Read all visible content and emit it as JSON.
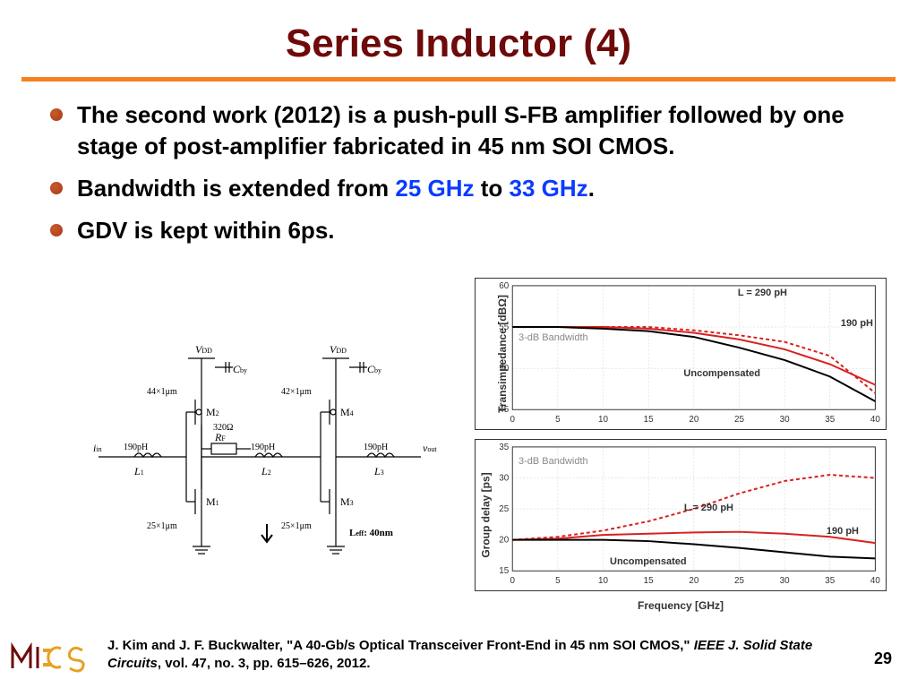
{
  "title": "Series Inductor (4)",
  "title_color": "#6e0a0a",
  "rule_color": "#f58220",
  "bullets": [
    {
      "dot_fill": "#a83a1a",
      "dot_border": "#c75a2a",
      "segments": [
        {
          "text": "The second work (2012) is a push-pull S-FB amplifier followed by one stage of post-amplifier fabricated in 45 nm SOI CMOS.",
          "hl": false
        }
      ]
    },
    {
      "dot_fill": "#a83a1a",
      "dot_border": "#c75a2a",
      "segments": [
        {
          "text": "Bandwidth is extended from ",
          "hl": false
        },
        {
          "text": "25 GHz",
          "hl": true
        },
        {
          "text": " to ",
          "hl": false
        },
        {
          "text": "33 GHz",
          "hl": true
        },
        {
          "text": ".",
          "hl": false
        }
      ]
    },
    {
      "dot_fill": "#a83a1a",
      "dot_border": "#c75a2a",
      "segments": [
        {
          "text": "GDV is kept within 6ps.",
          "hl": false
        }
      ]
    }
  ],
  "schematic": {
    "labels": {
      "vdd1": "V",
      "vdd1_sub": "DD",
      "vdd2": "V",
      "vdd2_sub": "DD",
      "cby1": "C",
      "cby1_sub": "by",
      "cby2": "C",
      "cby2_sub": "by",
      "iin": "i",
      "iin_sub": "in",
      "vout": "v",
      "vout_sub": "out",
      "m1": "M",
      "m1_sub": "1",
      "m2": "M",
      "m2_sub": "2",
      "m3": "M",
      "m3_sub": "3",
      "m4": "M",
      "m4_sub": "4",
      "l1": "L",
      "l1_sub": "1",
      "l2": "L",
      "l2_sub": "2",
      "l3": "L",
      "l3_sub": "3",
      "rf": "R",
      "rf_sub": "F",
      "ind1": "190pH",
      "ind2": "190pH",
      "ind3": "190pH",
      "res": "320Ω",
      "w1": "44×1μm",
      "w2": "42×1μm",
      "w3": "25×1μm",
      "w4": "25×1μm",
      "leff": "L",
      "leff_sub": "eff",
      "leff_val": ": 40nm"
    }
  },
  "chart_top": {
    "type": "line",
    "ylabel": "Transimpedance [dBΩ]",
    "ylim": [
      45,
      60
    ],
    "ytick_step": 5,
    "xlim": [
      0,
      40
    ],
    "xtick_step": 5,
    "grid_color": "#cccccc",
    "background_color": "#ffffff",
    "series": [
      {
        "name": "L = 290 pH",
        "color": "#d92020",
        "dash": "4 3",
        "x": [
          0,
          5,
          10,
          15,
          20,
          25,
          30,
          35,
          40
        ],
        "y": [
          55,
          55,
          55,
          55,
          54.6,
          54,
          53.2,
          51.5,
          47
        ]
      },
      {
        "name": "190 pH",
        "color": "#d92020",
        "dash": "none",
        "x": [
          0,
          5,
          10,
          15,
          20,
          25,
          30,
          35,
          40
        ],
        "y": [
          55,
          55,
          55,
          54.8,
          54.3,
          53.5,
          52.3,
          50.5,
          48
        ]
      },
      {
        "name": "Uncompensated",
        "color": "#000000",
        "dash": "none",
        "x": [
          0,
          5,
          10,
          15,
          20,
          25,
          30,
          35,
          40
        ],
        "y": [
          55,
          55,
          54.8,
          54.5,
          53.8,
          52.5,
          51,
          49,
          46
        ]
      }
    ],
    "annotations": {
      "bw3db": "3-dB Bandwidth",
      "l290": "L = 290 pH",
      "l190": "190 pH",
      "uncomp": "Uncompensated"
    }
  },
  "chart_bot": {
    "type": "line",
    "ylabel": "Group delay [ps]",
    "xlabel": "Frequency [GHz]",
    "ylim": [
      15,
      35
    ],
    "ytick_step": 5,
    "xlim": [
      0,
      40
    ],
    "xtick_step": 5,
    "grid_color": "#cccccc",
    "background_color": "#ffffff",
    "series": [
      {
        "name": "L = 290 pH",
        "color": "#d92020",
        "dash": "4 3",
        "x": [
          0,
          5,
          10,
          15,
          20,
          25,
          30,
          35,
          40
        ],
        "y": [
          20,
          20.5,
          21.5,
          23,
          25,
          27.5,
          29.5,
          30.5,
          30
        ]
      },
      {
        "name": "190 pH",
        "color": "#d92020",
        "dash": "none",
        "x": [
          0,
          5,
          10,
          15,
          20,
          25,
          30,
          35,
          40
        ],
        "y": [
          20,
          20.2,
          20.8,
          21,
          21.2,
          21.3,
          21,
          20.5,
          19.5
        ]
      },
      {
        "name": "Uncompensated",
        "color": "#000000",
        "dash": "none",
        "x": [
          0,
          5,
          10,
          15,
          20,
          25,
          30,
          35,
          40
        ],
        "y": [
          20,
          20,
          20,
          19.8,
          19.3,
          18.7,
          18,
          17.3,
          17
        ]
      }
    ],
    "annotations": {
      "bw3db": "3-dB Bandwidth",
      "l290": "L = 290 pH",
      "l190": "190 pH",
      "uncomp": "Uncompensated"
    }
  },
  "citation": {
    "authors": "J. Kim and J. F. Buckwalter, ",
    "title_quote": "\"A 40-Gb/s Optical Transceiver Front-End in 45 nm SOI CMOS,\" ",
    "journal": "IEEE J. Solid State Circuits",
    "rest": ", vol. 47, no. 3, pp. 615–626, 2012."
  },
  "page_number": "29"
}
